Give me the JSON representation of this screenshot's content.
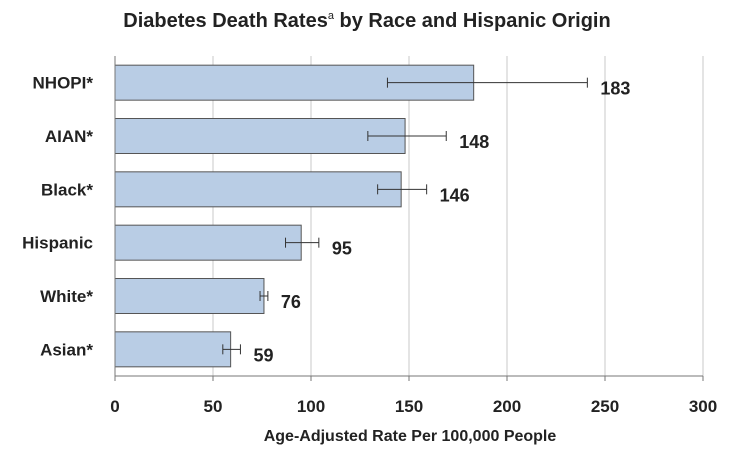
{
  "chart_data": {
    "type": "bar",
    "orientation": "horizontal",
    "title": "Diabetes Death Rates",
    "title_superscript": "a",
    "title_suffix": " by Race and Hispanic Origin",
    "xlabel": "Age-Adjusted Rate Per 100,000 People",
    "ylabel": "",
    "xlim": [
      0,
      300
    ],
    "x_ticks": [
      0,
      50,
      100,
      150,
      200,
      250,
      300
    ],
    "grid": "vertical",
    "bar_color": "#b9cde5",
    "bar_edge_color": "#555555",
    "categories": [
      "NHOPI*",
      "AIAN*",
      "Black*",
      "Hispanic",
      "White*",
      "Asian*"
    ],
    "values": [
      183,
      148,
      146,
      95,
      76,
      59
    ],
    "data_labels": [
      "183",
      "148",
      "146",
      "95",
      "76",
      "59"
    ],
    "error_low": [
      139,
      129,
      134,
      87,
      74,
      55
    ],
    "error_high": [
      241,
      169,
      159,
      104,
      78,
      64
    ]
  }
}
